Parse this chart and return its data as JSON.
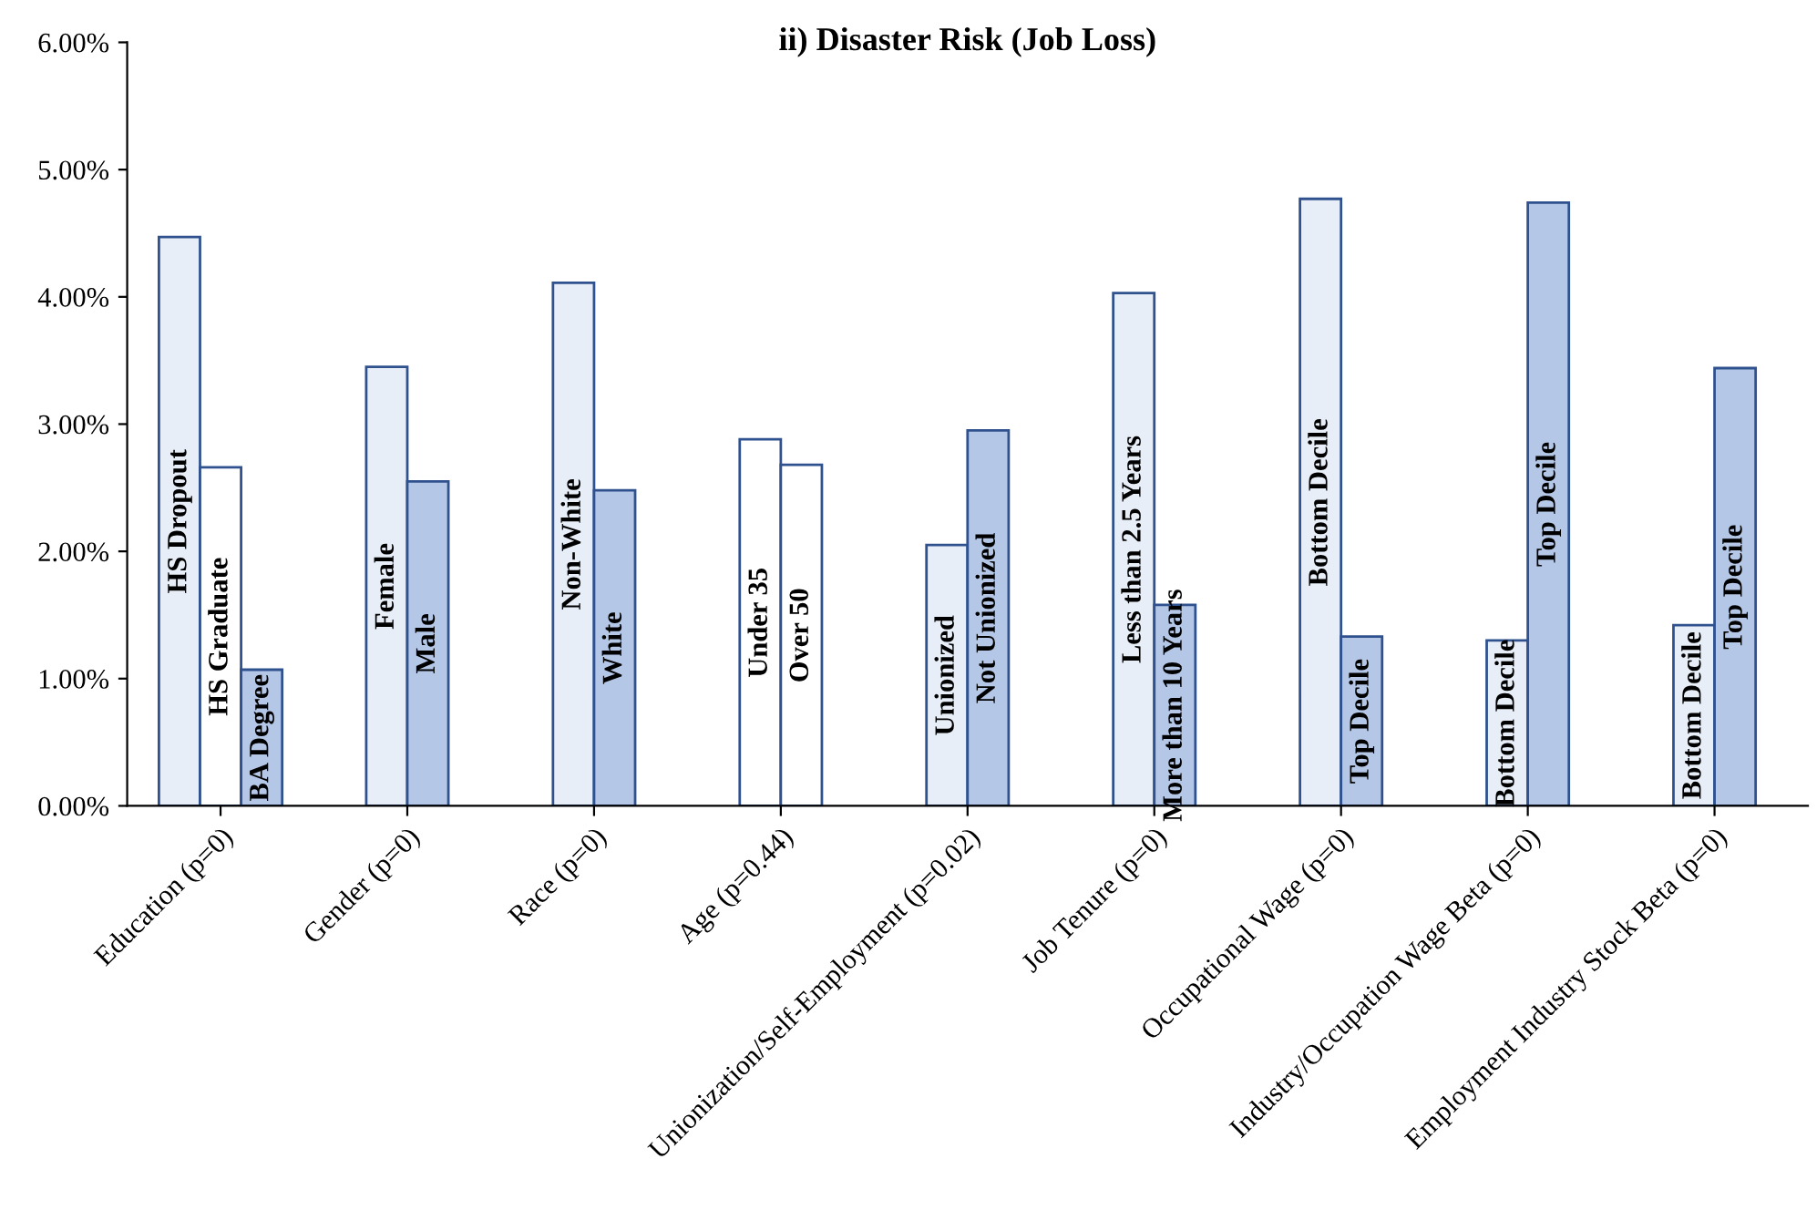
{
  "chart_data": {
    "type": "bar",
    "title": "ii) Disaster Risk (Job Loss)",
    "categories": [
      "Education (p=0)",
      "Gender (p=0)",
      "Race (p=0)",
      "Age (p=0.44)",
      "Unionization/Self-Employment (p=0.02)",
      "Job Tenure (p=0)",
      "Occupational Wage (p=0)",
      "Industry/Occupation Wage Beta (p=0)",
      "Employment Industry Stock Beta (p=0)"
    ],
    "series": [
      {
        "colors": [
          "#e8eef7",
          "#e8eef7",
          "#e8eef7",
          "#ffffff",
          "#e8eef7",
          "#e8eef7",
          "#e8eef7",
          "#e8eef7",
          "#e8eef7"
        ],
        "values": [
          4.47,
          3.45,
          4.11,
          2.88,
          2.05,
          4.03,
          4.77,
          1.3,
          1.42
        ],
        "value_labels": [
          "HS Dropout",
          "Female",
          "Non-White",
          "Under 35",
          "Unionized",
          "Less than 2.5 Years",
          "Bottom Decile",
          "Bottom Decile",
          "Bottom Decile"
        ]
      },
      {
        "colors": [
          "#ffffff",
          "#b4c7e7",
          "#b4c7e7",
          "#ffffff",
          "#b4c7e7",
          "#b4c7e7",
          "#b4c7e7",
          "#b4c7e7",
          "#b4c7e7"
        ],
        "values": [
          2.66,
          2.55,
          2.48,
          2.68,
          2.95,
          1.58,
          1.33,
          4.74,
          3.44
        ],
        "value_labels": [
          "HS Graduate",
          "Male",
          "White",
          "Over 50",
          "Not Unionized",
          "More than 10 Years",
          "Top Decile",
          "Top Decile",
          "Top Decile"
        ]
      },
      {
        "colors": [
          "#b4c7e7",
          null,
          null,
          null,
          null,
          null,
          null,
          null,
          null
        ],
        "values": [
          1.07,
          null,
          null,
          null,
          null,
          null,
          null,
          null,
          null
        ],
        "value_labels": [
          "BA Degree",
          null,
          null,
          null,
          null,
          null,
          null,
          null,
          null
        ]
      }
    ],
    "ylim": [
      0,
      6
    ],
    "yticks": [
      {
        "value": 0,
        "label": "0.00%"
      },
      {
        "value": 1,
        "label": "1.00%"
      },
      {
        "value": 2,
        "label": "2.00%"
      },
      {
        "value": 3,
        "label": "3.00%"
      },
      {
        "value": 4,
        "label": "4.00%"
      },
      {
        "value": 5,
        "label": "5.00%"
      },
      {
        "value": 6,
        "label": "6.00%"
      }
    ],
    "grid": false,
    "legend": false
  }
}
